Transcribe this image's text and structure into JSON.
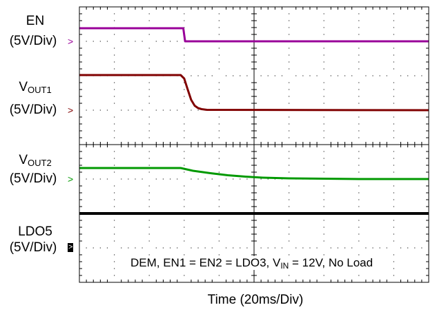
{
  "chart_data": {
    "type": "line",
    "title": "",
    "xlabel": "Time  (20ms/Div)",
    "annotation": {
      "pre": "DEM, EN1 = EN2 = LDO3, V",
      "sub": "IN",
      "post": " = 12V, No Load"
    },
    "x_divisions": 10,
    "y_divisions": 8,
    "x_unit": "ms",
    "x_per_div": 20,
    "xlim": [
      0,
      200
    ],
    "ylim": [
      0,
      8
    ],
    "grid": true,
    "series": [
      {
        "name": "EN",
        "name_sub": "",
        "scale": "(5V/Div)",
        "color": "#990099",
        "marker_style": "arrow",
        "ground_div": 7.0,
        "points": [
          [
            0,
            7.38
          ],
          [
            59.5,
            7.38
          ],
          [
            60.5,
            7.0
          ],
          [
            200,
            7.0
          ]
        ]
      },
      {
        "name": "V",
        "name_sub": "OUT1",
        "scale": "(5V/Div)",
        "color": "#800000",
        "marker_style": "arrow",
        "ground_div": 5.0,
        "points": [
          [
            0,
            6.02
          ],
          [
            58,
            6.02
          ],
          [
            60,
            5.92
          ],
          [
            62,
            5.6
          ],
          [
            64,
            5.3
          ],
          [
            66,
            5.13
          ],
          [
            68,
            5.06
          ],
          [
            70,
            5.03
          ],
          [
            73,
            5.01
          ],
          [
            200,
            5.0
          ]
        ]
      },
      {
        "name": "V",
        "name_sub": "OUT2",
        "scale": "(5V/Div)",
        "color": "#009900",
        "marker_style": "arrow",
        "ground_div": 3.0,
        "points": [
          [
            0,
            3.32
          ],
          [
            58,
            3.32
          ],
          [
            65,
            3.24
          ],
          [
            75,
            3.17
          ],
          [
            85,
            3.11
          ],
          [
            95,
            3.07
          ],
          [
            105,
            3.04
          ],
          [
            120,
            3.02
          ],
          [
            140,
            3.01
          ],
          [
            160,
            3.0
          ],
          [
            200,
            3.0
          ]
        ]
      },
      {
        "name": "LDO5",
        "name_sub": "",
        "scale": "(5V/Div)",
        "color": "#000000",
        "marker_style": "box",
        "ground_div": 1.0,
        "points": [
          [
            0,
            2.0
          ],
          [
            200,
            2.0
          ]
        ]
      }
    ]
  }
}
